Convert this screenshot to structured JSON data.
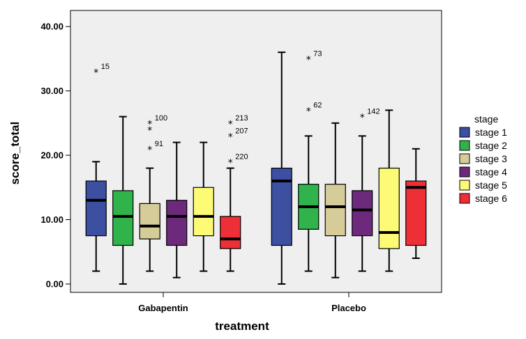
{
  "chart_data": {
    "type": "boxplot",
    "xlabel": "treatment",
    "ylabel": "score_total",
    "ylim": [
      -1.3,
      42.5
    ],
    "yticks": [
      0,
      10,
      20,
      30,
      40
    ],
    "ytick_labels": [
      "0.00",
      "10.00",
      "20.00",
      "30.00",
      "40.00"
    ],
    "categories": [
      "Gabapentin",
      "Placebo"
    ],
    "legend": {
      "title": "stage",
      "position": "right"
    },
    "grid": false,
    "series": [
      {
        "name": "stage 1",
        "color": "#3c4fa0",
        "boxes": [
          {
            "category": "Gabapentin",
            "min": 2,
            "q1": 7.5,
            "median": 13,
            "q3": 16,
            "max": 19,
            "outliers": [
              {
                "value": 33,
                "label": "15"
              }
            ]
          },
          {
            "category": "Placebo",
            "min": 0,
            "q1": 6,
            "median": 16,
            "q3": 18,
            "max": 36,
            "outliers": []
          }
        ]
      },
      {
        "name": "stage 2",
        "color": "#2fb34a",
        "boxes": [
          {
            "category": "Gabapentin",
            "min": 0,
            "q1": 6,
            "median": 10.5,
            "q3": 14.5,
            "max": 26,
            "outliers": []
          },
          {
            "category": "Placebo",
            "min": 2,
            "q1": 8.5,
            "median": 12,
            "q3": 15.5,
            "max": 23,
            "outliers": [
              {
                "value": 35,
                "label": "73"
              },
              {
                "value": 27,
                "label": "62"
              }
            ]
          }
        ]
      },
      {
        "name": "stage 3",
        "color": "#d5cc9a",
        "boxes": [
          {
            "category": "Gabapentin",
            "min": 2,
            "q1": 7,
            "median": 9,
            "q3": 12.5,
            "max": 18,
            "outliers": [
              {
                "value": 25,
                "label": "100"
              },
              {
                "value": 24,
                "label": ""
              },
              {
                "value": 21,
                "label": "91"
              }
            ]
          },
          {
            "category": "Placebo",
            "min": 1,
            "q1": 7.5,
            "median": 12,
            "q3": 15.5,
            "max": 25,
            "outliers": []
          }
        ]
      },
      {
        "name": "stage 4",
        "color": "#6d2a7d",
        "boxes": [
          {
            "category": "Gabapentin",
            "min": 1,
            "q1": 6,
            "median": 10.5,
            "q3": 13,
            "max": 22,
            "outliers": []
          },
          {
            "category": "Placebo",
            "min": 2,
            "q1": 7.5,
            "median": 11.5,
            "q3": 14.5,
            "max": 23,
            "outliers": [
              {
                "value": 26,
                "label": "142"
              }
            ]
          }
        ]
      },
      {
        "name": "stage 5",
        "color": "#fdfb76",
        "boxes": [
          {
            "category": "Gabapentin",
            "min": 2,
            "q1": 7.5,
            "median": 10.5,
            "q3": 15,
            "max": 22,
            "outliers": []
          },
          {
            "category": "Placebo",
            "min": 2,
            "q1": 5.5,
            "median": 8,
            "q3": 18,
            "max": 27,
            "outliers": []
          }
        ]
      },
      {
        "name": "stage 6",
        "color": "#ef2f37",
        "boxes": [
          {
            "category": "Gabapentin",
            "min": 2,
            "q1": 5.5,
            "median": 7,
            "q3": 10.5,
            "max": 18,
            "outliers": [
              {
                "value": 25,
                "label": "213"
              },
              {
                "value": 23,
                "label": "207"
              },
              {
                "value": 19,
                "label": "220"
              }
            ]
          },
          {
            "category": "Placebo",
            "min": 4,
            "q1": 6,
            "median": 15,
            "q3": 16,
            "max": 21,
            "outliers": []
          }
        ]
      }
    ]
  }
}
